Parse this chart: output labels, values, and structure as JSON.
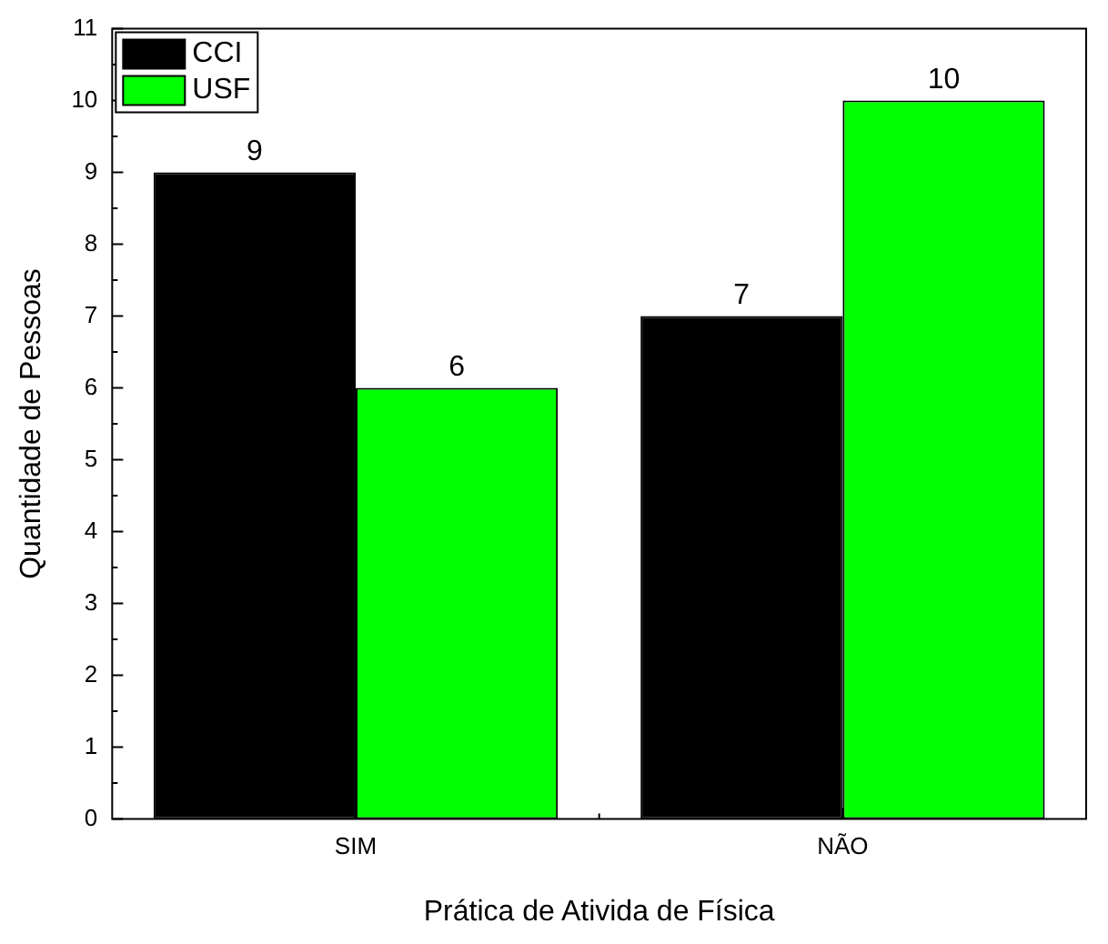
{
  "chart_data": {
    "type": "bar",
    "xlabel": "Prática de Ativida de Física",
    "ylabel": "Quantidade de Pessoas",
    "categories": [
      "SIM",
      "NÃO"
    ],
    "series": [
      {
        "name": "CCI",
        "color": "#000000",
        "values": [
          9,
          7
        ]
      },
      {
        "name": "USF",
        "color": "#00ff00",
        "values": [
          6,
          10
        ]
      }
    ],
    "ylim": [
      0,
      11
    ],
    "yticks": [
      0,
      1,
      2,
      3,
      4,
      5,
      6,
      7,
      8,
      9,
      10,
      11
    ],
    "grid": false,
    "legend": "top left",
    "data_labels": true
  }
}
